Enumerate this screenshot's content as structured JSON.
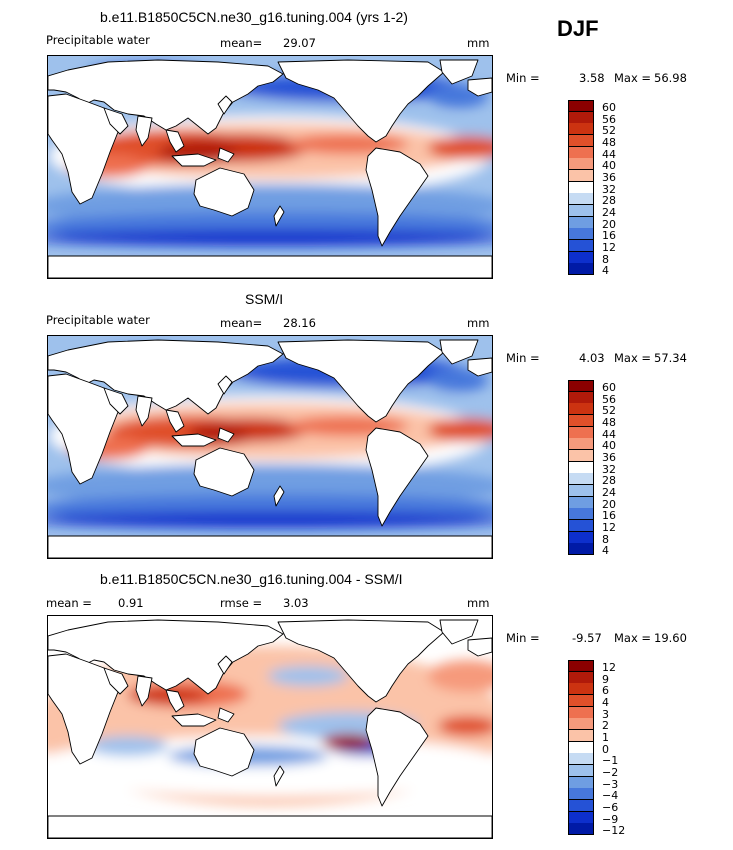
{
  "season": "DJF",
  "panels": [
    {
      "title": "b.e11.B1850C5CN.ne30_g16.tuning.004 (yrs 1-2)",
      "left_label": "Precipitable water",
      "mid_label": "mean=",
      "mid_value": "29.07",
      "right_label": "mm",
      "min_label": "Min =",
      "min_value": "3.58",
      "max_label": "Max =",
      "max_value": "56.98",
      "colorbar": [
        "60",
        "56",
        "52",
        "48",
        "44",
        "40",
        "36",
        "32",
        "28",
        "24",
        "20",
        "16",
        "12",
        "8",
        "4"
      ],
      "colors": [
        "#8b0000",
        "#b01a0a",
        "#cc3311",
        "#e0502a",
        "#ee7050",
        "#f69a7c",
        "#fbc3a8",
        "#ffffff",
        "#c6dbf3",
        "#9ec1ec",
        "#6f9ee2",
        "#4778dc",
        "#2552d6",
        "#0d2fcc",
        "#001aa6"
      ]
    },
    {
      "title": "SSM/I",
      "left_label": "Precipitable water",
      "mid_label": "mean=",
      "mid_value": "28.16",
      "right_label": "mm",
      "min_label": "Min =",
      "min_value": "4.03",
      "max_label": "Max =",
      "max_value": "57.34",
      "colorbar": [
        "60",
        "56",
        "52",
        "48",
        "44",
        "40",
        "36",
        "32",
        "28",
        "24",
        "20",
        "16",
        "12",
        "8",
        "4"
      ],
      "colors": [
        "#8b0000",
        "#b01a0a",
        "#cc3311",
        "#e0502a",
        "#ee7050",
        "#f69a7c",
        "#fbc3a8",
        "#ffffff",
        "#c6dbf3",
        "#9ec1ec",
        "#6f9ee2",
        "#4778dc",
        "#2552d6",
        "#0d2fcc",
        "#001aa6"
      ]
    },
    {
      "title": "b.e11.B1850C5CN.ne30_g16.tuning.004 - SSM/I",
      "left_label": "mean =",
      "left_value": "0.91",
      "mid_label": "rmse =",
      "mid_value": "3.03",
      "right_label": "mm",
      "min_label": "Min =",
      "min_value": "-9.57",
      "max_label": "Max =",
      "max_value": "19.60",
      "colorbar": [
        "12",
        "9",
        "6",
        "4",
        "3",
        "2",
        "1",
        "0",
        "−1",
        "−2",
        "−3",
        "−4",
        "−6",
        "−9",
        "−12"
      ],
      "colors": [
        "#8b0000",
        "#b01a0a",
        "#cc3311",
        "#e0502a",
        "#ee7050",
        "#f69a7c",
        "#fbc3a8",
        "#ffffff",
        "#c6dbf3",
        "#9ec1ec",
        "#6f9ee2",
        "#4778dc",
        "#2552d6",
        "#0d2fcc",
        "#001aa6"
      ]
    }
  ]
}
